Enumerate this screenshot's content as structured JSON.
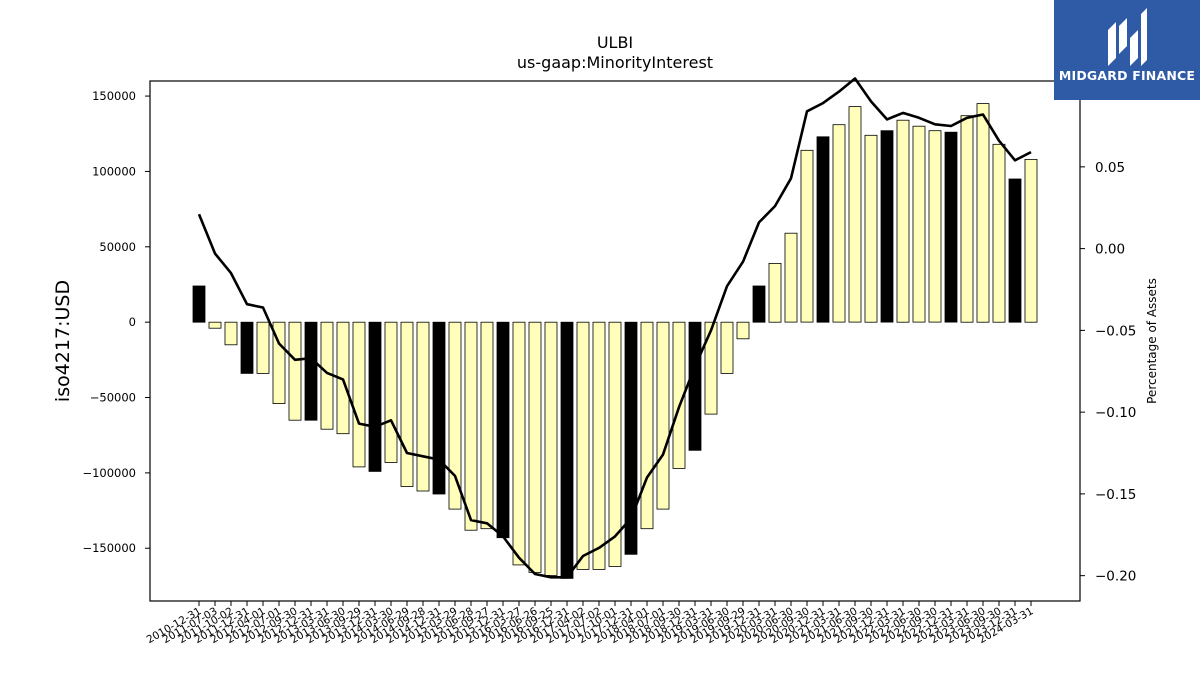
{
  "colors": {
    "bar_pos": "#ffffbb",
    "bar_neg_highlight": "#000000",
    "line": "#000000",
    "logo_bg": "#2f5aa6"
  },
  "logo": {
    "text": "MIDGARD FINANCE",
    "icon": "midgard-logo-icon"
  },
  "chart_data": {
    "type": "bar",
    "title": "ULBI",
    "subtitle": "us-gaap:MinorityInterest",
    "ylabel": "iso4217:USD",
    "y2label": "Percentage of Assets",
    "ylim": [
      -185000,
      160000
    ],
    "y2lim": [
      -0.2155,
      0.1025
    ],
    "yticks": [
      -150000,
      -100000,
      -50000,
      0,
      50000,
      100000,
      150000
    ],
    "yticklabels": [
      "−150000",
      "−100000",
      "−50000",
      "0",
      "50000",
      "100000",
      "150000"
    ],
    "y2ticks": [
      -0.2,
      -0.15,
      -0.1,
      -0.05,
      0.0,
      0.05,
      0.1
    ],
    "y2ticklabels": [
      "−0.20",
      "−0.15",
      "−0.10",
      "−0.05",
      "0.00",
      "0.05",
      "0.10"
    ],
    "categories": [
      "2010-12-31",
      "2011-07-03",
      "2011-10-02",
      "2011-12-31",
      "2012-04-01",
      "2012-07-01",
      "2012-09-30",
      "2012-12-31",
      "2013-03-31",
      "2013-06-30",
      "2013-09-29",
      "2013-12-31",
      "2014-03-30",
      "2014-06-29",
      "2014-09-28",
      "2014-12-31",
      "2015-03-29",
      "2015-06-28",
      "2015-09-27",
      "2015-12-31",
      "2016-03-27",
      "2016-06-26",
      "2016-09-25",
      "2016-12-31",
      "2017-04-02",
      "2017-07-02",
      "2017-10-01",
      "2017-12-31",
      "2018-04-01",
      "2018-07-01",
      "2018-09-30",
      "2018-12-31",
      "2019-03-31",
      "2019-06-30",
      "2019-09-29",
      "2019-12-31",
      "2020-03-31",
      "2020-06-30",
      "2020-09-30",
      "2020-12-31",
      "2021-03-31",
      "2021-06-30",
      "2021-09-30",
      "2021-12-31",
      "2022-03-31",
      "2022-06-30",
      "2022-09-30",
      "2022-12-31",
      "2023-03-31",
      "2023-06-30",
      "2023-09-30",
      "2023-12-31",
      "2024-03-31"
    ],
    "series": [
      {
        "kind": "bar",
        "values": [
          24000,
          -4000,
          -15000,
          -34000,
          -34000,
          -54000,
          -65000,
          -65000,
          -71000,
          -74000,
          -96000,
          -99000,
          -93000,
          -109000,
          -112000,
          -114000,
          -124000,
          -138000,
          -137000,
          -143000,
          -161000,
          -166000,
          -168000,
          -170000,
          -164000,
          -164000,
          -162000,
          -154000,
          -137000,
          -124000,
          -97000,
          -85000,
          -61000,
          -34000,
          -11000,
          24000,
          39000,
          59000,
          114000,
          123000,
          131000,
          143000,
          124000,
          127000,
          134000,
          130000,
          127000,
          126000,
          137000,
          145000,
          118000,
          95000,
          108000
        ],
        "highlight": [
          true,
          false,
          false,
          true,
          false,
          false,
          false,
          true,
          false,
          false,
          false,
          true,
          false,
          false,
          false,
          true,
          false,
          false,
          false,
          true,
          false,
          false,
          false,
          true,
          false,
          false,
          false,
          true,
          false,
          false,
          false,
          true,
          false,
          false,
          false,
          true,
          false,
          false,
          false,
          true,
          false,
          false,
          false,
          true,
          false,
          false,
          false,
          true,
          false,
          false,
          false,
          true,
          false
        ]
      },
      {
        "kind": "line",
        "axis": "right",
        "values": [
          0.021,
          -0.003,
          -0.015,
          -0.034,
          -0.036,
          -0.058,
          -0.068,
          -0.067,
          -0.076,
          -0.08,
          -0.107,
          -0.109,
          -0.105,
          -0.125,
          -0.127,
          -0.129,
          -0.139,
          -0.166,
          -0.168,
          -0.176,
          -0.189,
          -0.199,
          -0.201,
          -0.201,
          -0.188,
          -0.183,
          -0.176,
          -0.165,
          -0.14,
          -0.126,
          -0.097,
          -0.072,
          -0.05,
          -0.023,
          -0.008,
          0.016,
          0.026,
          0.043,
          0.084,
          0.089,
          0.096,
          0.104,
          0.09,
          0.079,
          0.083,
          0.08,
          0.076,
          0.075,
          0.08,
          0.082,
          0.066,
          0.054,
          0.059
        ]
      }
    ]
  }
}
